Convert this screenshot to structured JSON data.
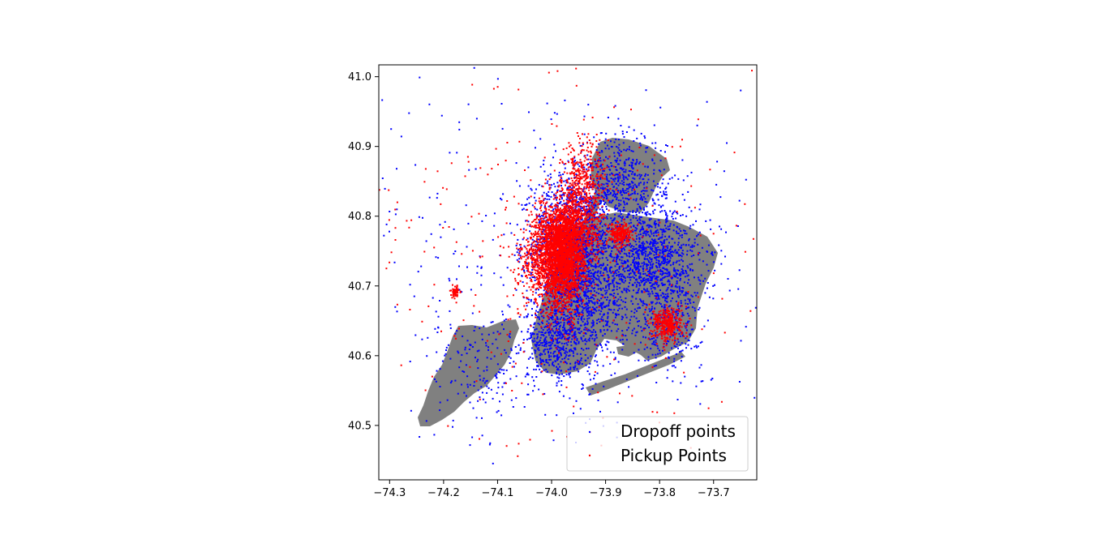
{
  "chart_data": {
    "type": "scatter",
    "title": "",
    "xlabel": "",
    "ylabel": "",
    "xlim": [
      -74.32,
      -73.62
    ],
    "ylim": [
      40.422,
      41.017
    ],
    "xticks": [
      -74.3,
      -74.2,
      -74.1,
      -74.0,
      -73.9,
      -73.8,
      -73.7
    ],
    "xtick_labels": [
      "−74.3",
      "−74.2",
      "−74.1",
      "−74.0",
      "−73.9",
      "−73.8",
      "−73.7"
    ],
    "yticks": [
      40.5,
      40.6,
      40.7,
      40.8,
      40.9,
      41.0
    ],
    "ytick_labels": [
      "40.5",
      "40.6",
      "40.7",
      "40.8",
      "40.9",
      "41.0"
    ],
    "grid": false,
    "legend_position": "lower right",
    "base_map_color": "#808080",
    "series": [
      {
        "name": "Dropoff points",
        "color": "#0000ff",
        "clusters": [
          {
            "center": [
              -73.965,
              40.765
            ],
            "spread": [
              0.035,
              0.045
            ],
            "count": 1400
          },
          {
            "center": [
              -73.815,
              40.735
            ],
            "spread": [
              0.045,
              0.04
            ],
            "count": 1100
          },
          {
            "center": [
              -73.945,
              40.675
            ],
            "spread": [
              0.04,
              0.05
            ],
            "count": 900
          },
          {
            "center": [
              -73.87,
              40.845
            ],
            "spread": [
              0.04,
              0.035
            ],
            "count": 500
          },
          {
            "center": [
              -74.0,
              40.62
            ],
            "spread": [
              0.025,
              0.025
            ],
            "count": 350
          },
          {
            "center": [
              -73.78,
              40.645
            ],
            "spread": [
              0.03,
              0.03
            ],
            "count": 250
          },
          {
            "center": [
              -74.13,
              40.58
            ],
            "spread": [
              0.05,
              0.04
            ],
            "count": 160
          },
          {
            "center": [
              -73.97,
              40.75
            ],
            "spread": [
              0.19,
              0.14
            ],
            "count": 450
          }
        ]
      },
      {
        "name": "Pickup Points",
        "color": "#ff0000",
        "clusters": [
          {
            "center": [
              -73.985,
              40.752
            ],
            "spread": [
              0.022,
              0.03
            ],
            "count": 2200
          },
          {
            "center": [
              -73.955,
              40.785
            ],
            "spread": [
              0.025,
              0.03
            ],
            "count": 800
          },
          {
            "center": [
              -73.98,
              40.71
            ],
            "spread": [
              0.02,
              0.035
            ],
            "count": 600
          },
          {
            "center": [
              -73.94,
              40.86
            ],
            "spread": [
              0.02,
              0.025
            ],
            "count": 300
          },
          {
            "center": [
              -73.873,
              40.774
            ],
            "spread": [
              0.01,
              0.008
            ],
            "count": 250
          },
          {
            "center": [
              -73.785,
              40.645
            ],
            "spread": [
              0.014,
              0.012
            ],
            "count": 350
          },
          {
            "center": [
              -74.03,
              40.73
            ],
            "spread": [
              0.02,
              0.03
            ],
            "count": 250
          },
          {
            "center": [
              -74.178,
              40.692
            ],
            "spread": [
              0.004,
              0.004
            ],
            "count": 60
          },
          {
            "center": [
              -73.98,
              40.74
            ],
            "spread": [
              0.2,
              0.15
            ],
            "count": 350
          }
        ]
      }
    ]
  }
}
